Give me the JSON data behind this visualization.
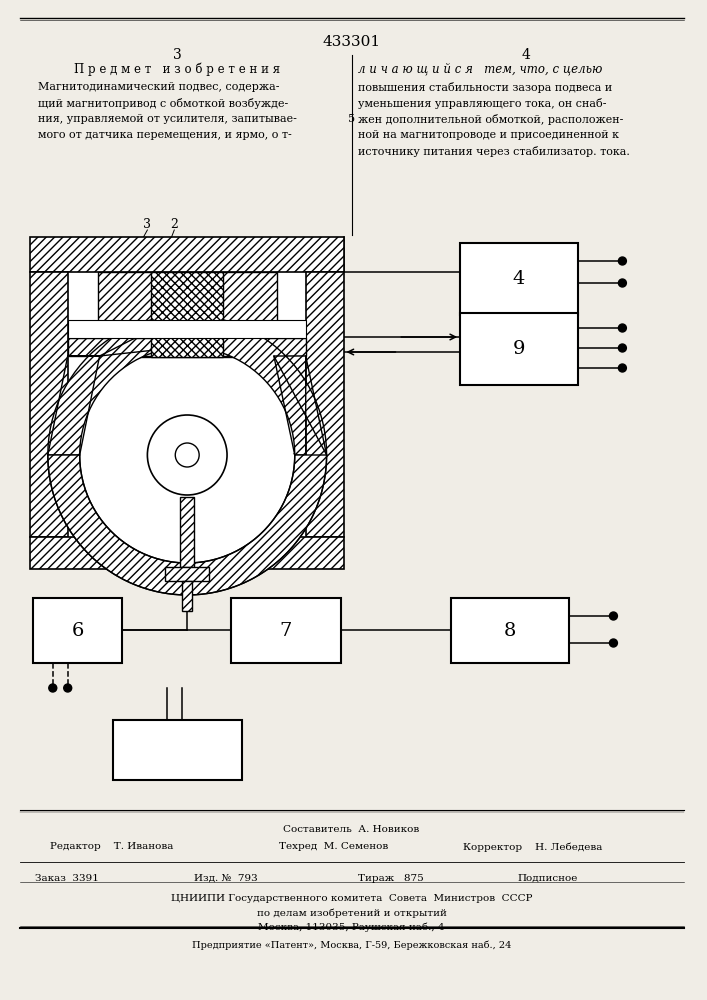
{
  "patent_number": "433301",
  "page_left": "3",
  "page_right": "4",
  "heading_left": "П р е д м е т   и з о б р е т е н и я",
  "heading_right": "л и ч а ю щ и й с я   тем, что, с целью",
  "text_left_lines": [
    "Магнитодинамический подвес, содержа-",
    "щий магнитопривод с обмоткой возбужде-",
    "ния, управляемой от усилителя, запитывае-",
    "мого от датчика перемещения, и ярмо, о т-"
  ],
  "text_right_lines": [
    "повышения стабильности зазора подвеса и",
    "уменьшения управляющего тока, он снаб-",
    "жен дополнительной обмоткой, расположен-",
    "ной на магнитопроводе и присоединенной к",
    "источнику питания через стабилизатор. тока."
  ],
  "line_number_5": "5",
  "footer_composer": "Составитель  А. Новиков",
  "footer_editor": "Редактор    Т. Иванова",
  "footer_tech": "Техред  М. Семенов",
  "footer_corrector": "Корректор    Н. Лебедева",
  "footer_order": "Заказ  3391",
  "footer_edition": "Изд. №  793",
  "footer_print": "Тираж   875",
  "footer_subscription": "Подписное",
  "footer_org1": "ЦНИИПИ Государственного комитета  Совета  Министров  СССР",
  "footer_org2": "по делам изобретений и открытий",
  "footer_org3": "Москва, 113035, Раушская наб., 4",
  "footer_company": "Предприятие «Патент», Москва, Г-59, Бережковская наб., 24",
  "bg_color": "#f0ede6"
}
